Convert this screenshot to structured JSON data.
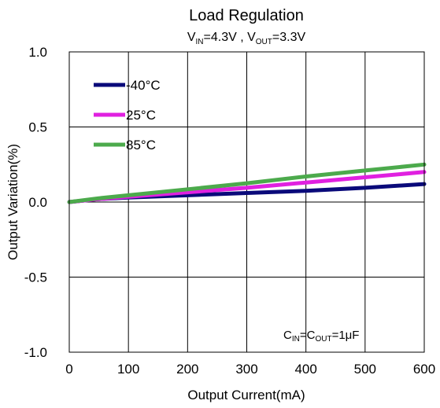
{
  "chart_data": {
    "type": "line",
    "title": "Load Regulation",
    "subtitle": {
      "vin_main": "V",
      "vin_sub": "IN",
      "vin_value": "=4.3V , ",
      "vout_main": "V",
      "vout_sub": "OUT",
      "vout_value": "=3.3V"
    },
    "xlabel": "Output Current(mA)",
    "ylabel": "Output Variation(%)",
    "xlim": [
      0,
      600
    ],
    "ylim": [
      -1.0,
      1.0
    ],
    "xticks": [
      "0",
      "100",
      "200",
      "300",
      "400",
      "500",
      "600"
    ],
    "yticks": [
      "1.0",
      "0.5",
      "0.0",
      "-0.5",
      "-1.0"
    ],
    "grid": true,
    "legend_position": "top-left",
    "note": {
      "c1_main": "C",
      "c1_sub": "IN",
      "eq1": "=",
      "c2_main": "C",
      "c2_sub": "OUT",
      "eq2": "=1μF"
    },
    "series": [
      {
        "name": "-40°C",
        "color": "#0a0a7a",
        "points": [
          [
            0,
            0.0
          ],
          [
            50,
            0.02
          ],
          [
            100,
            0.03
          ],
          [
            200,
            0.045
          ],
          [
            300,
            0.06
          ],
          [
            400,
            0.075
          ],
          [
            500,
            0.095
          ],
          [
            600,
            0.12
          ]
        ]
      },
      {
        "name": "25°C",
        "color": "#e020e0",
        "points": [
          [
            0,
            0.0
          ],
          [
            50,
            0.02
          ],
          [
            100,
            0.035
          ],
          [
            200,
            0.065
          ],
          [
            300,
            0.095
          ],
          [
            400,
            0.13
          ],
          [
            500,
            0.165
          ],
          [
            600,
            0.2
          ]
        ]
      },
      {
        "name": "85°C",
        "color": "#4caa4c",
        "points": [
          [
            0,
            0.0
          ],
          [
            50,
            0.025
          ],
          [
            100,
            0.045
          ],
          [
            200,
            0.085
          ],
          [
            300,
            0.125
          ],
          [
            400,
            0.17
          ],
          [
            500,
            0.21
          ],
          [
            600,
            0.25
          ]
        ]
      }
    ]
  }
}
